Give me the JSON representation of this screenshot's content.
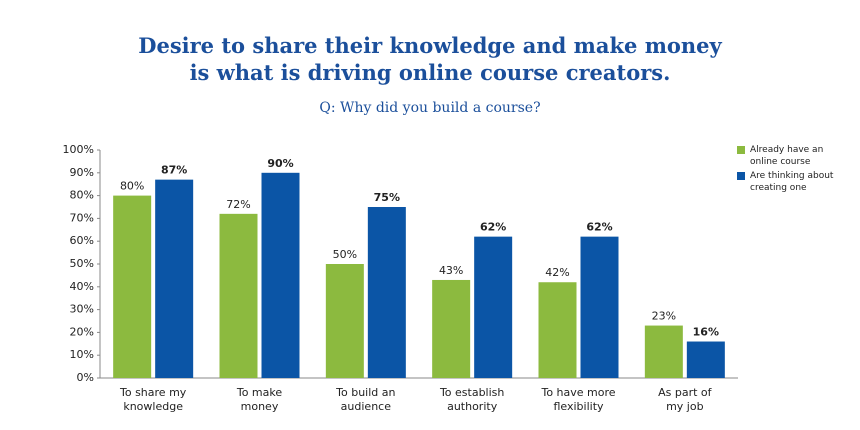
{
  "chart_data": {
    "type": "bar",
    "title": "Desire to share their knowledge and make money\nis what is driving online course creators.",
    "subtitle": "Q: Why did you build a course?",
    "categories": [
      "To share my\nknowledge",
      "To make\nmoney",
      "To build an\naudience",
      "To establish\nauthority",
      "To have more\nflexibility",
      "As part of\nmy job"
    ],
    "series": [
      {
        "name": "Already have an\nonline course",
        "color": "#8cba3f",
        "values": [
          80,
          72,
          50,
          43,
          42,
          23
        ],
        "value_labels": [
          "80%",
          "72%",
          "50%",
          "43%",
          "42%",
          "23%"
        ]
      },
      {
        "name": "Are thinking about\ncreating one",
        "color": "#0b55a6",
        "values": [
          87,
          90,
          75,
          62,
          62,
          16
        ],
        "value_labels": [
          "87%",
          "90%",
          "75%",
          "62%",
          "62%",
          "16%"
        ]
      }
    ],
    "ylim": [
      0,
      100
    ],
    "yticks": [
      {
        "value": 0,
        "label": "0%"
      },
      {
        "value": 10,
        "label": "10%"
      },
      {
        "value": 20,
        "label": "20%"
      },
      {
        "value": 30,
        "label": "30%"
      },
      {
        "value": 40,
        "label": "40%"
      },
      {
        "value": 50,
        "label": "50%"
      },
      {
        "value": 60,
        "label": "60%"
      },
      {
        "value": 70,
        "label": "70%"
      },
      {
        "value": 80,
        "label": "80%"
      },
      {
        "value": 90,
        "label": "90%"
      },
      {
        "value": 100,
        "label": "100%"
      }
    ],
    "grid": false,
    "legend": "right"
  }
}
